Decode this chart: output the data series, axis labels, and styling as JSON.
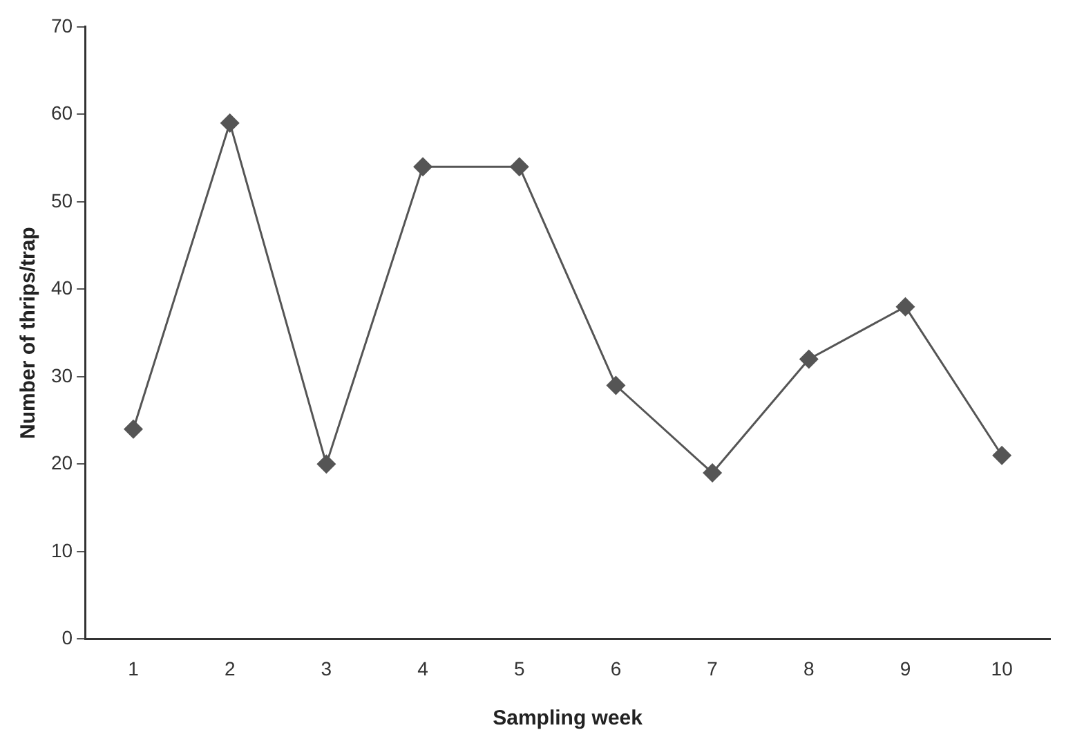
{
  "chart_data": {
    "type": "line",
    "xlabel": "Sampling week",
    "ylabel": "Number of thrips/trap",
    "categories": [
      "1",
      "2",
      "3",
      "4",
      "5",
      "6",
      "7",
      "8",
      "9",
      "10"
    ],
    "series": [
      {
        "color": "#555555",
        "values": [
          24,
          59,
          20,
          54,
          54,
          29,
          19,
          32,
          38,
          21
        ]
      }
    ],
    "ylim": [
      0,
      70
    ],
    "yticks": [
      0,
      10,
      20,
      30,
      40,
      50,
      60,
      70
    ],
    "grid": false,
    "legend": false,
    "marker": "diamond",
    "line_style": "solid"
  }
}
